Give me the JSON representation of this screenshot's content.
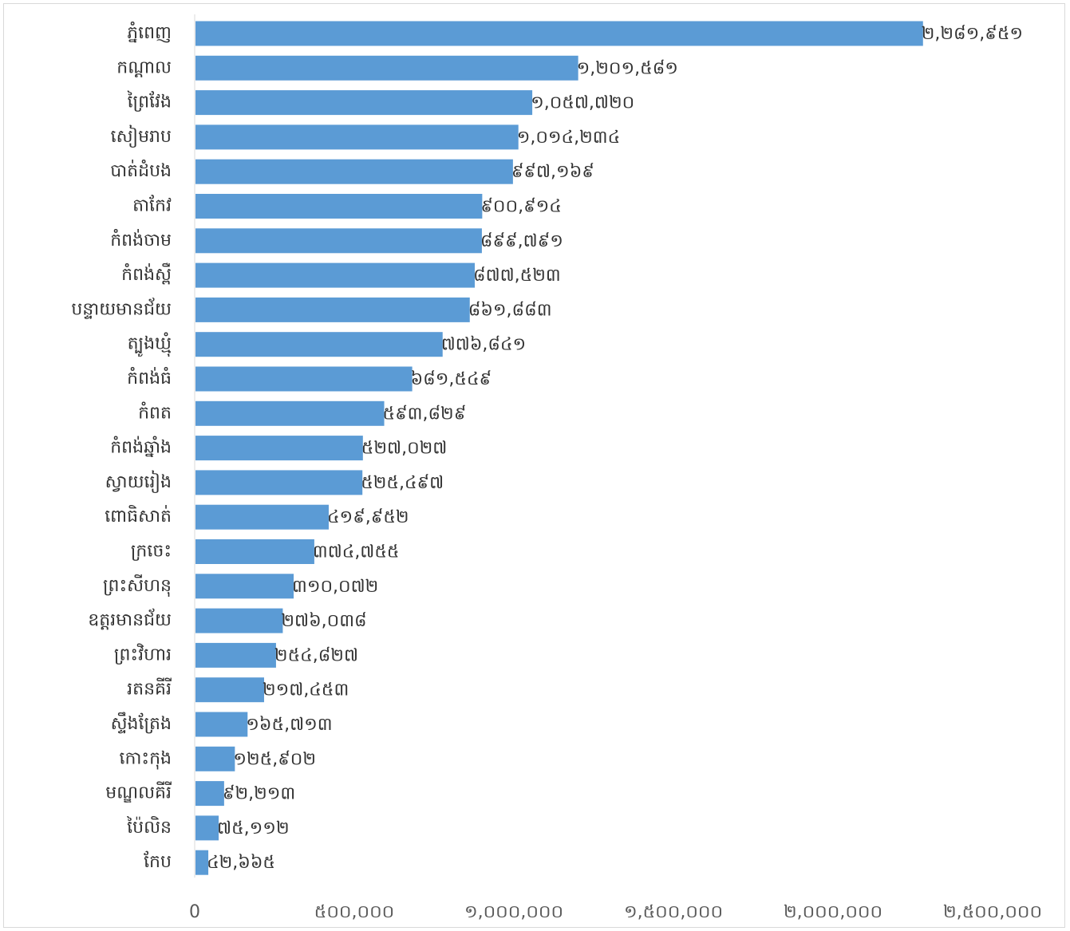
{
  "chart_data": {
    "type": "bar",
    "orientation": "horizontal",
    "categories": [
      "ភ្នំពេញ",
      "កណ្តាល",
      "ព្រៃវែង",
      "សៀមរាប",
      "បាត់ដំបង",
      "តាកែវ",
      "កំពង់ចាម",
      "កំពង់ស្ពឺ",
      "បន្ទាយមានជ័យ",
      "ត្បូងឃ្មុំ",
      "កំពង់ធំ",
      "កំពត",
      "កំពង់ឆ្នាំង",
      "ស្វាយរៀង",
      "ពោធិសាត់",
      "ក្រចេះ",
      "ព្រះសីហនុ",
      "ឧត្តរមានជ័យ",
      "ព្រះវិហារ",
      "រតនគីរី",
      "ស្ទឹងត្រែង",
      "កោះកុង",
      "មណ្ឌលគីរី",
      "ប៉ៃលិន",
      "កែប"
    ],
    "values": [
      2281951,
      1201581,
      1057720,
      1014234,
      997169,
      900914,
      899791,
      877523,
      861883,
      776841,
      681549,
      593829,
      527027,
      525497,
      419952,
      374755,
      310072,
      276038,
      254827,
      217453,
      165713,
      125902,
      92213,
      75112,
      42665
    ],
    "data_labels": [
      "២,២៨១,៩៥១",
      "១,២០១,៥៨១",
      "១,០៥៧,៧២០",
      "១,០១៤,២៣៤",
      "៩៩៧,១៦៩",
      "៩០០,៩១៤",
      "៨៩៩,៧៩១",
      "៨៧៧,៥២៣",
      "៨៦១,៨៨៣",
      "៧៧៦,៨៤១",
      "៦៨១,៥៤៩",
      "៥៩៣,៨២៩",
      "៥២៧,០២៧",
      "៥២៥,៤៩៧",
      "៤១៩,៩៥២",
      "៣៧៤,៧៥៥",
      "៣១០,០៧២",
      "២៧៦,០៣៨",
      "២៥៤,៨២៧",
      "២១៧,៤៥៣",
      "១៦៥,៧១៣",
      "១២៥,៩០២",
      "៩២,២១៣",
      "៧៥,១១២",
      "៤២,៦៦៥"
    ],
    "x_ticks": [
      0,
      500000,
      1000000,
      1500000,
      2000000,
      2500000
    ],
    "x_tick_labels": [
      "0",
      "៥០០,០០០",
      "១,០០០,០០០",
      "១,៥០០,០០០",
      "២,០០០,០០០",
      "២,៥០០,០០០"
    ],
    "xlim": [
      0,
      2500000
    ],
    "title": "",
    "xlabel": "",
    "ylabel": "",
    "grid": false,
    "legend": "none",
    "colors": {
      "bar": "#5b9bd5",
      "axis": "#d9d9d9",
      "text": "#333333"
    }
  }
}
